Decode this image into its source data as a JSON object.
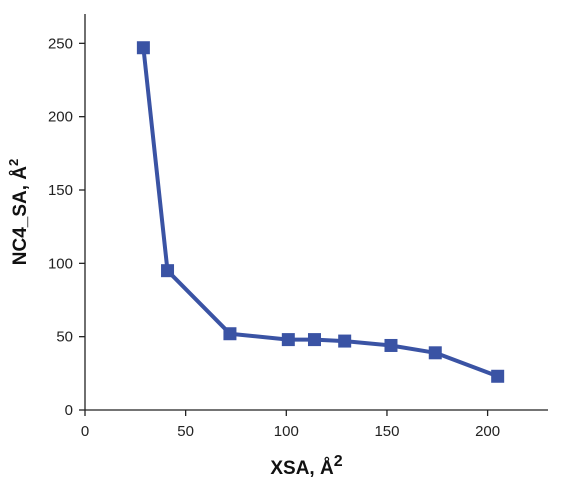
{
  "chart_data": {
    "type": "line",
    "title": "",
    "xlabel": "XSA, Å",
    "xlabel_sup": "2",
    "ylabel": "NC4_SA, Å",
    "ylabel_sup": "2",
    "xlim": [
      0,
      230
    ],
    "ylim": [
      0,
      270
    ],
    "xticks": [
      0,
      50,
      100,
      150,
      200
    ],
    "yticks": [
      0,
      50,
      100,
      150,
      200,
      250
    ],
    "grid": false,
    "legend": "none",
    "series": [
      {
        "x": [
          29,
          41,
          72,
          101,
          114,
          129,
          152,
          174,
          205
        ],
        "y": [
          247,
          95,
          52,
          48,
          48,
          47,
          44,
          39,
          23
        ],
        "color": "#3a53a4",
        "marker": "square"
      }
    ]
  }
}
